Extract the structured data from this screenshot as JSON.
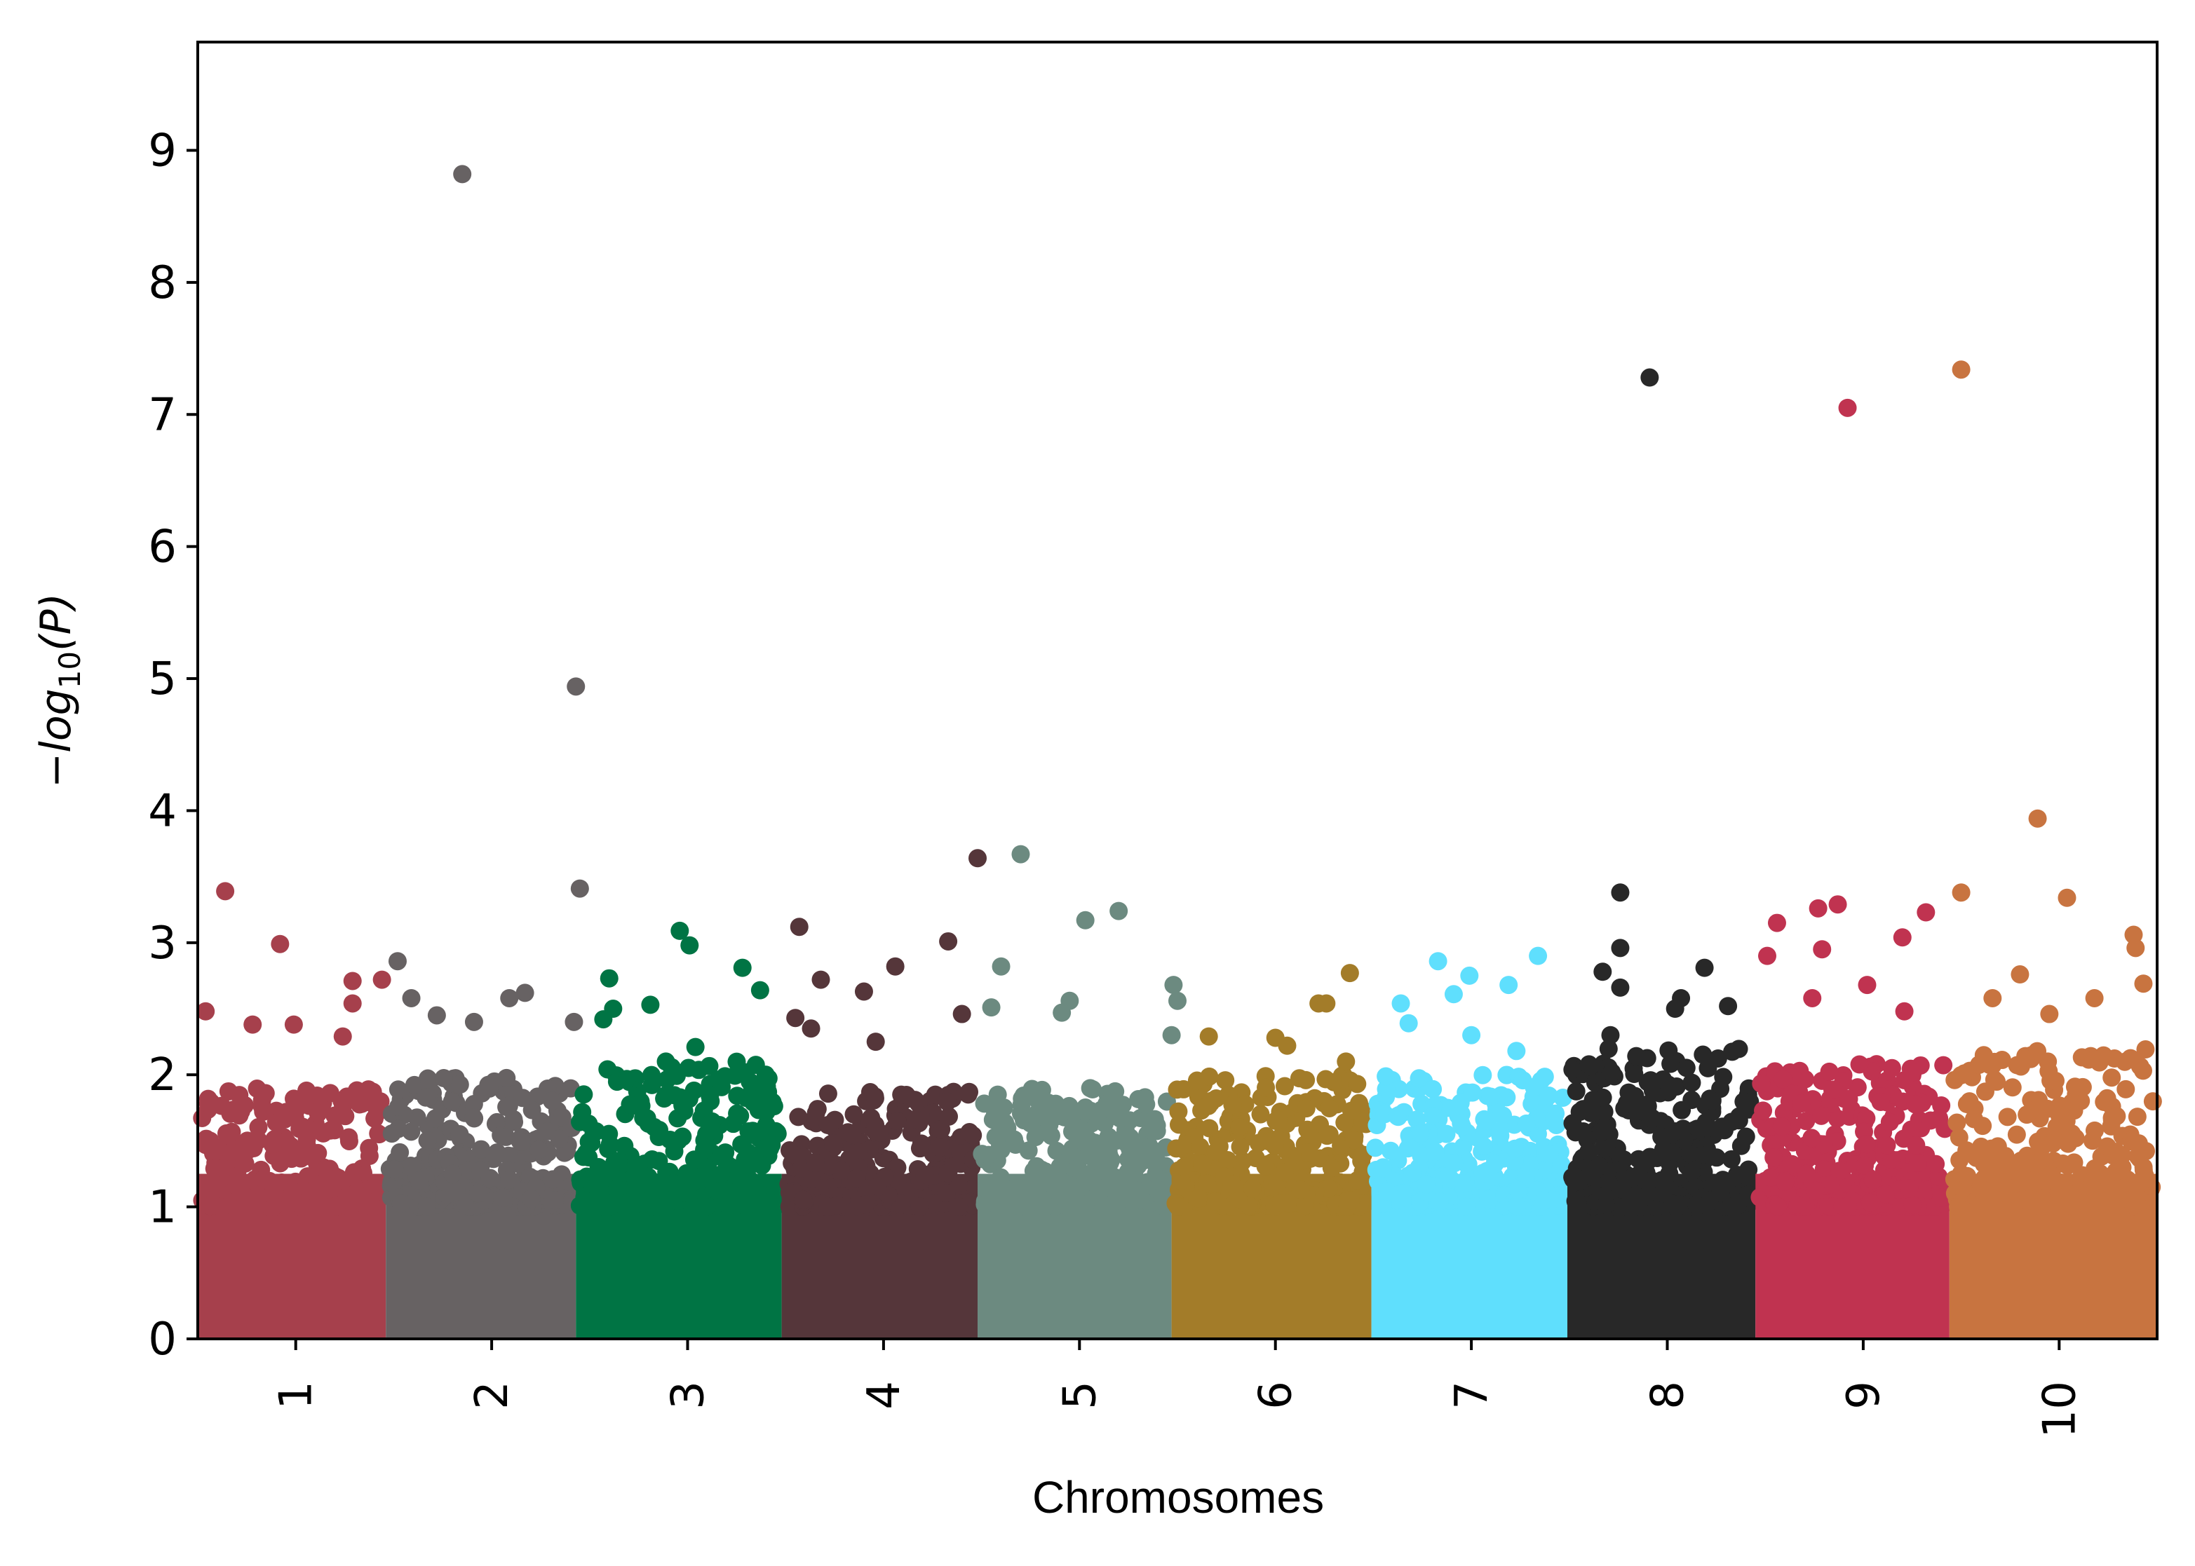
{
  "chart_data": {
    "type": "scatter",
    "title": "",
    "xlabel": "Chromosomes",
    "ylabel_parts": {
      "prefix": "−log",
      "sub": "10",
      "suffix": "(P)"
    },
    "xlim": [
      0.5,
      10.5
    ],
    "ylim": [
      0,
      9.82
    ],
    "yticks": [
      "0",
      "1",
      "2",
      "3",
      "4",
      "5",
      "6",
      "7",
      "8",
      "9"
    ],
    "grid": false,
    "legend": "none",
    "chromosomes": [
      {
        "label": "1",
        "tick": 1,
        "range": [
          0.5,
          1.46
        ],
        "color": "#A6404C",
        "bulk_max": 1.9
      },
      {
        "label": "2",
        "tick": 2,
        "range": [
          1.46,
          2.43
        ],
        "color": "#676263",
        "bulk_max": 2.0
      },
      {
        "label": "3",
        "tick": 3,
        "range": [
          2.43,
          3.48
        ],
        "color": "#007444",
        "bulk_max": 2.1
      },
      {
        "label": "4",
        "tick": 4,
        "range": [
          3.48,
          4.48
        ],
        "color": "#55363A",
        "bulk_max": 1.9
      },
      {
        "label": "5",
        "tick": 5,
        "range": [
          4.48,
          5.47
        ],
        "color": "#6C8A80",
        "bulk_max": 1.9
      },
      {
        "label": "6",
        "tick": 6,
        "range": [
          5.47,
          6.49
        ],
        "color": "#A37C29",
        "bulk_max": 2.0
      },
      {
        "label": "7",
        "tick": 7,
        "range": [
          6.49,
          7.49
        ],
        "color": "#5FDFFD",
        "bulk_max": 2.0
      },
      {
        "label": "8",
        "tick": 8,
        "range": [
          7.49,
          8.45
        ],
        "color": "#282828",
        "bulk_max": 2.2
      },
      {
        "label": "9",
        "tick": 9,
        "range": [
          8.45,
          9.44
        ],
        "color": "#C03350",
        "bulk_max": 2.1
      },
      {
        "label": "10",
        "tick": 10,
        "range": [
          9.44,
          10.5
        ],
        "color": "#C87440",
        "bulk_max": 2.2
      }
    ],
    "top_points": [
      {
        "chr": 1,
        "x": 0.64,
        "y": 3.39
      },
      {
        "chr": 1,
        "x": 0.92,
        "y": 2.99
      },
      {
        "chr": 1,
        "x": 0.54,
        "y": 2.48
      },
      {
        "chr": 1,
        "x": 1.29,
        "y": 2.71
      },
      {
        "chr": 1,
        "x": 1.29,
        "y": 2.54
      },
      {
        "chr": 1,
        "x": 1.24,
        "y": 2.29
      },
      {
        "chr": 1,
        "x": 1.44,
        "y": 2.72
      },
      {
        "chr": 1,
        "x": 0.99,
        "y": 2.38
      },
      {
        "chr": 1,
        "x": 0.78,
        "y": 2.38
      },
      {
        "chr": 2,
        "x": 1.85,
        "y": 8.82
      },
      {
        "chr": 2,
        "x": 2.43,
        "y": 4.94
      },
      {
        "chr": 2,
        "x": 2.45,
        "y": 3.41
      },
      {
        "chr": 2,
        "x": 1.52,
        "y": 2.86
      },
      {
        "chr": 2,
        "x": 2.17,
        "y": 2.62
      },
      {
        "chr": 2,
        "x": 2.09,
        "y": 2.58
      },
      {
        "chr": 2,
        "x": 1.59,
        "y": 2.58
      },
      {
        "chr": 2,
        "x": 1.91,
        "y": 2.4
      },
      {
        "chr": 2,
        "x": 2.42,
        "y": 2.4
      },
      {
        "chr": 2,
        "x": 1.72,
        "y": 2.45
      },
      {
        "chr": 3,
        "x": 2.96,
        "y": 3.09
      },
      {
        "chr": 3,
        "x": 3.01,
        "y": 2.98
      },
      {
        "chr": 3,
        "x": 3.28,
        "y": 2.81
      },
      {
        "chr": 3,
        "x": 3.37,
        "y": 2.64
      },
      {
        "chr": 3,
        "x": 2.6,
        "y": 2.73
      },
      {
        "chr": 3,
        "x": 2.81,
        "y": 2.53
      },
      {
        "chr": 3,
        "x": 2.62,
        "y": 2.5
      },
      {
        "chr": 3,
        "x": 3.04,
        "y": 2.21
      },
      {
        "chr": 3,
        "x": 2.57,
        "y": 2.42
      },
      {
        "chr": 4,
        "x": 3.57,
        "y": 3.12
      },
      {
        "chr": 4,
        "x": 4.48,
        "y": 3.64
      },
      {
        "chr": 4,
        "x": 4.33,
        "y": 3.01
      },
      {
        "chr": 4,
        "x": 4.06,
        "y": 2.82
      },
      {
        "chr": 4,
        "x": 3.68,
        "y": 2.72
      },
      {
        "chr": 4,
        "x": 3.9,
        "y": 2.63
      },
      {
        "chr": 4,
        "x": 3.55,
        "y": 2.43
      },
      {
        "chr": 4,
        "x": 4.4,
        "y": 2.46
      },
      {
        "chr": 4,
        "x": 3.96,
        "y": 2.25
      },
      {
        "chr": 4,
        "x": 3.63,
        "y": 2.35
      },
      {
        "chr": 5,
        "x": 4.7,
        "y": 3.67
      },
      {
        "chr": 5,
        "x": 5.2,
        "y": 3.24
      },
      {
        "chr": 5,
        "x": 5.03,
        "y": 3.17
      },
      {
        "chr": 5,
        "x": 4.6,
        "y": 2.82
      },
      {
        "chr": 5,
        "x": 5.48,
        "y": 2.68
      },
      {
        "chr": 5,
        "x": 4.95,
        "y": 2.56
      },
      {
        "chr": 5,
        "x": 4.55,
        "y": 2.51
      },
      {
        "chr": 5,
        "x": 5.5,
        "y": 2.56
      },
      {
        "chr": 5,
        "x": 4.91,
        "y": 2.47
      },
      {
        "chr": 5,
        "x": 5.47,
        "y": 2.3
      },
      {
        "chr": 6,
        "x": 6.38,
        "y": 2.77
      },
      {
        "chr": 6,
        "x": 6.22,
        "y": 2.54
      },
      {
        "chr": 6,
        "x": 6.26,
        "y": 2.54
      },
      {
        "chr": 6,
        "x": 5.66,
        "y": 2.29
      },
      {
        "chr": 6,
        "x": 6.06,
        "y": 2.22
      },
      {
        "chr": 6,
        "x": 6.36,
        "y": 2.1
      },
      {
        "chr": 6,
        "x": 6.0,
        "y": 2.28
      },
      {
        "chr": 7,
        "x": 7.34,
        "y": 2.9
      },
      {
        "chr": 7,
        "x": 6.83,
        "y": 2.86
      },
      {
        "chr": 7,
        "x": 6.99,
        "y": 2.75
      },
      {
        "chr": 7,
        "x": 7.19,
        "y": 2.68
      },
      {
        "chr": 7,
        "x": 6.64,
        "y": 2.54
      },
      {
        "chr": 7,
        "x": 6.91,
        "y": 2.61
      },
      {
        "chr": 7,
        "x": 7.0,
        "y": 2.3
      },
      {
        "chr": 7,
        "x": 6.68,
        "y": 2.39
      },
      {
        "chr": 7,
        "x": 7.23,
        "y": 2.18
      },
      {
        "chr": 8,
        "x": 7.91,
        "y": 7.28
      },
      {
        "chr": 8,
        "x": 7.76,
        "y": 3.38
      },
      {
        "chr": 8,
        "x": 7.76,
        "y": 2.96
      },
      {
        "chr": 8,
        "x": 8.19,
        "y": 2.81
      },
      {
        "chr": 8,
        "x": 7.67,
        "y": 2.78
      },
      {
        "chr": 8,
        "x": 7.76,
        "y": 2.66
      },
      {
        "chr": 8,
        "x": 8.07,
        "y": 2.58
      },
      {
        "chr": 8,
        "x": 8.04,
        "y": 2.5
      },
      {
        "chr": 8,
        "x": 8.31,
        "y": 2.52
      },
      {
        "chr": 8,
        "x": 7.71,
        "y": 2.3
      },
      {
        "chr": 9,
        "x": 8.92,
        "y": 7.05
      },
      {
        "chr": 9,
        "x": 8.87,
        "y": 3.29
      },
      {
        "chr": 9,
        "x": 8.77,
        "y": 3.26
      },
      {
        "chr": 9,
        "x": 8.56,
        "y": 3.15
      },
      {
        "chr": 9,
        "x": 9.32,
        "y": 3.23
      },
      {
        "chr": 9,
        "x": 9.2,
        "y": 3.04
      },
      {
        "chr": 9,
        "x": 8.79,
        "y": 2.95
      },
      {
        "chr": 9,
        "x": 9.02,
        "y": 2.68
      },
      {
        "chr": 9,
        "x": 8.51,
        "y": 2.9
      },
      {
        "chr": 9,
        "x": 9.21,
        "y": 2.48
      },
      {
        "chr": 9,
        "x": 8.74,
        "y": 2.58
      },
      {
        "chr": 10,
        "x": 9.5,
        "y": 7.34
      },
      {
        "chr": 10,
        "x": 9.89,
        "y": 3.94
      },
      {
        "chr": 10,
        "x": 9.5,
        "y": 3.38
      },
      {
        "chr": 10,
        "x": 10.04,
        "y": 3.34
      },
      {
        "chr": 10,
        "x": 10.38,
        "y": 3.06
      },
      {
        "chr": 10,
        "x": 10.43,
        "y": 2.69
      },
      {
        "chr": 10,
        "x": 9.8,
        "y": 2.76
      },
      {
        "chr": 10,
        "x": 10.39,
        "y": 2.96
      },
      {
        "chr": 10,
        "x": 10.18,
        "y": 2.58
      },
      {
        "chr": 10,
        "x": 9.66,
        "y": 2.58
      },
      {
        "chr": 10,
        "x": 9.95,
        "y": 2.46
      }
    ]
  }
}
